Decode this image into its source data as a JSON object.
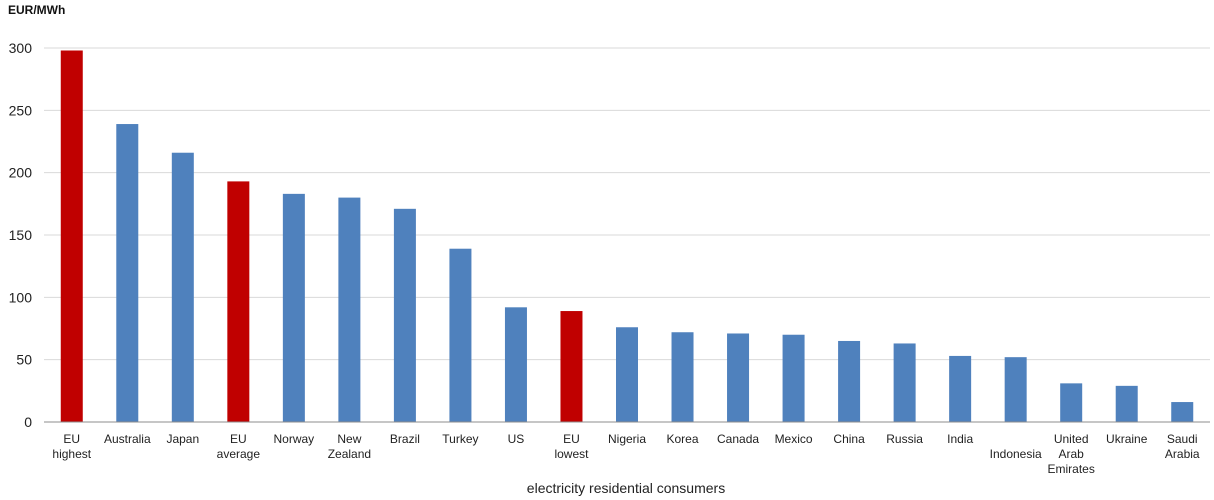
{
  "chart_data": {
    "type": "bar",
    "ylabel": "EUR/MWh",
    "xlabel": "electricity  residential consumers",
    "ylim": [
      0,
      300
    ],
    "yticks": [
      0,
      50,
      100,
      150,
      200,
      250,
      300
    ],
    "grid": true,
    "categories": [
      [
        "EU",
        "highest"
      ],
      [
        "Australia"
      ],
      [
        "Japan"
      ],
      [
        "EU",
        "average"
      ],
      [
        "Norway"
      ],
      [
        "New",
        "Zealand"
      ],
      [
        "Brazil"
      ],
      [
        "Turkey"
      ],
      [
        "US"
      ],
      [
        "EU",
        "lowest"
      ],
      [
        "Nigeria"
      ],
      [
        "Korea"
      ],
      [
        "Canada"
      ],
      [
        "Mexico"
      ],
      [
        "China"
      ],
      [
        "Russia"
      ],
      [
        "India"
      ],
      [
        "Indonesia"
      ],
      [
        "United",
        "Arab",
        "Emirates"
      ],
      [
        "Ukraine"
      ],
      [
        "Saudi",
        "Arabia"
      ]
    ],
    "values": [
      298,
      239,
      216,
      193,
      183,
      180,
      171,
      139,
      92,
      89,
      76,
      72,
      71,
      70,
      65,
      63,
      53,
      52,
      31,
      29,
      16
    ],
    "highlight": [
      true,
      false,
      false,
      true,
      false,
      false,
      false,
      false,
      false,
      true,
      false,
      false,
      false,
      false,
      false,
      false,
      false,
      false,
      false,
      false,
      false
    ],
    "colors": {
      "default": "#4f81bd",
      "highlight": "#c00000",
      "grid": "#d9d9d9",
      "axis": "#8c8c8c"
    }
  }
}
